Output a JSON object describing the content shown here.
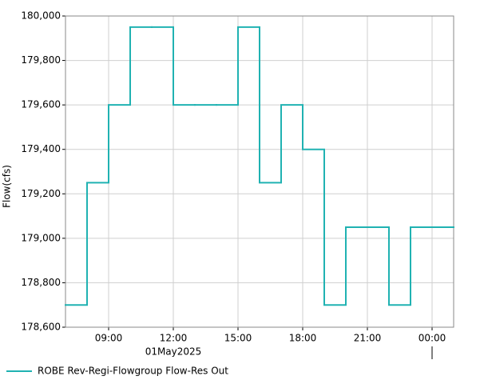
{
  "chart_data": {
    "type": "step",
    "y_label": "Flow(cfs)",
    "date_label": "01May2025",
    "x": [
      "2025-05-01T07:00",
      "2025-05-01T08:00",
      "2025-05-01T09:00",
      "2025-05-01T10:00",
      "2025-05-01T11:00",
      "2025-05-01T12:00",
      "2025-05-01T13:00",
      "2025-05-01T14:00",
      "2025-05-01T15:00",
      "2025-05-01T16:00",
      "2025-05-01T17:00",
      "2025-05-01T18:00",
      "2025-05-01T19:00",
      "2025-05-01T20:00",
      "2025-05-01T21:00",
      "2025-05-01T22:00",
      "2025-05-01T23:00",
      "2025-05-02T00:00"
    ],
    "series": [
      {
        "name": "ROBE Rev-Regi-Flowgroup Flow-Res Out",
        "color": "#20b2b2",
        "values": [
          178700,
          179250,
          179600,
          179950,
          179950,
          179600,
          179600,
          179600,
          179950,
          179250,
          179600,
          179400,
          178700,
          179050,
          179050,
          178700,
          179050,
          179050
        ]
      }
    ],
    "xlim": [
      "2025-05-01T07:00",
      "2025-05-02T01:00"
    ],
    "xticks": [
      {
        "value": "2025-05-01T09:00",
        "label": "09:00"
      },
      {
        "value": "2025-05-01T12:00",
        "label": "12:00"
      },
      {
        "value": "2025-05-01T15:00",
        "label": "15:00"
      },
      {
        "value": "2025-05-01T18:00",
        "label": "18:00"
      },
      {
        "value": "2025-05-01T21:00",
        "label": "21:00"
      },
      {
        "value": "2025-05-02T00:00",
        "label": "00:00"
      }
    ],
    "ylim": [
      178600,
      180000
    ],
    "yticks": [
      {
        "value": 178600,
        "label": "178,600"
      },
      {
        "value": 178800,
        "label": "178,800"
      },
      {
        "value": 179000,
        "label": "179,000"
      },
      {
        "value": 179200,
        "label": "179,200"
      },
      {
        "value": 179400,
        "label": "179,400"
      },
      {
        "value": 179600,
        "label": "179,600"
      },
      {
        "value": 179800,
        "label": "179,800"
      },
      {
        "value": 180000,
        "label": "180,000"
      }
    ],
    "grid": true
  }
}
